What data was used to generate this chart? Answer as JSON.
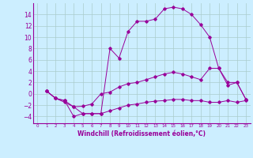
{
  "xlabel": "Windchill (Refroidissement éolien,°C)",
  "bg_color": "#cceeff",
  "grid_color": "#aacccc",
  "line_color": "#990099",
  "xlim": [
    -0.5,
    23.5
  ],
  "ylim": [
    -5.2,
    16.0
  ],
  "xticks": [
    0,
    1,
    2,
    3,
    4,
    5,
    6,
    7,
    8,
    9,
    10,
    11,
    12,
    13,
    14,
    15,
    16,
    17,
    18,
    19,
    20,
    21,
    22,
    23
  ],
  "yticks": [
    -4,
    -2,
    0,
    2,
    4,
    6,
    8,
    10,
    12,
    14
  ],
  "line1_x": [
    1,
    2,
    3,
    4,
    5,
    6,
    7,
    8,
    9,
    10,
    11,
    12,
    13,
    14,
    15,
    16,
    17,
    18,
    19,
    20,
    21,
    22,
    23
  ],
  "line1_y": [
    0.5,
    -0.8,
    -1.2,
    -4.0,
    -3.5,
    -3.5,
    -3.5,
    8.0,
    6.3,
    11.0,
    12.8,
    12.8,
    13.2,
    15.0,
    15.3,
    15.0,
    14.0,
    12.2,
    10.0,
    4.5,
    2.0,
    2.0,
    -1.0
  ],
  "line2_x": [
    1,
    2,
    3,
    4,
    5,
    6,
    7,
    8,
    9,
    10,
    11,
    12,
    13,
    14,
    15,
    16,
    17,
    18,
    19,
    20,
    21,
    22,
    23
  ],
  "line2_y": [
    0.5,
    -0.8,
    -1.2,
    -2.3,
    -2.2,
    -1.8,
    0.0,
    0.3,
    1.2,
    1.8,
    2.0,
    2.5,
    3.0,
    3.5,
    3.8,
    3.5,
    3.0,
    2.5,
    4.5,
    4.5,
    1.5,
    2.0,
    -1.0
  ],
  "line3_x": [
    1,
    2,
    3,
    4,
    5,
    6,
    7,
    8,
    9,
    10,
    11,
    12,
    13,
    14,
    15,
    16,
    17,
    18,
    19,
    20,
    21,
    22,
    23
  ],
  "line3_y": [
    0.5,
    -0.8,
    -1.5,
    -2.3,
    -3.5,
    -3.5,
    -3.5,
    -3.0,
    -2.5,
    -2.0,
    -1.8,
    -1.5,
    -1.3,
    -1.2,
    -1.0,
    -1.0,
    -1.2,
    -1.2,
    -1.5,
    -1.5,
    -1.2,
    -1.5,
    -1.2
  ],
  "xlabel_fontsize": 5.5,
  "tick_fontsize_x": 4.0,
  "tick_fontsize_y": 5.5,
  "marker_size": 1.8,
  "line_width": 0.7
}
